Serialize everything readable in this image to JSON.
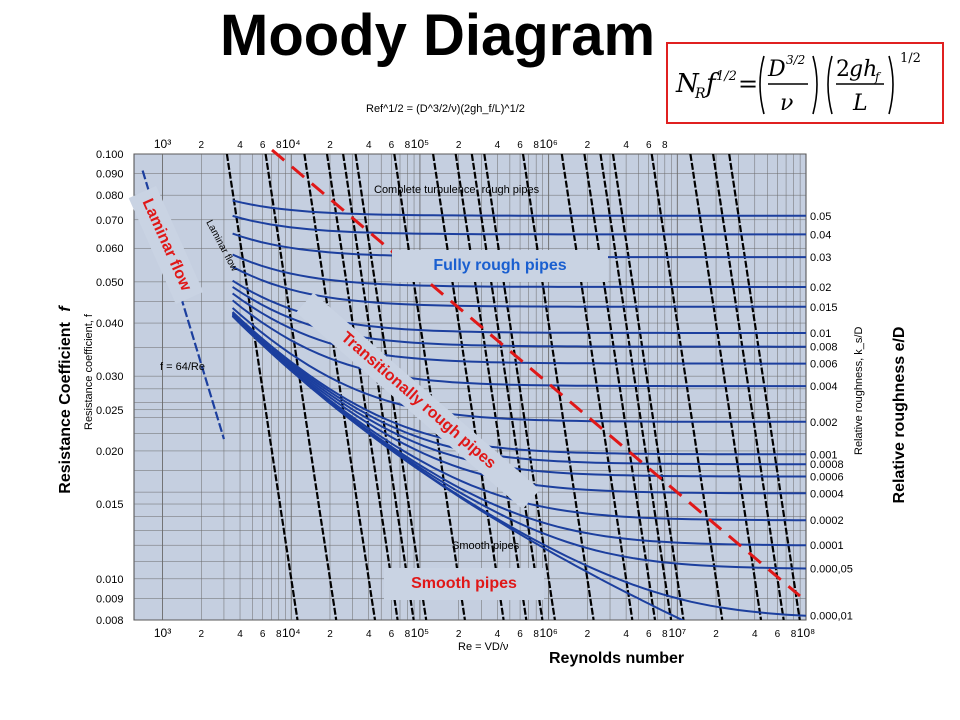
{
  "title": "Moody Diagram",
  "formula": {
    "display": "N_R f^1/2 = (D^3/2 / ν)(2gh_f / L)^1/2"
  },
  "colors": {
    "plot_bg": "#c5cfe0",
    "curve": "#1c3f9e",
    "reynolds_lines": "#000000",
    "boundary": "#e01818",
    "callout_bg": "#c9d3e3",
    "callout_blue_text": "#1a5fd0"
  },
  "labels": {
    "y_axis_main": "Resistance Coefficient",
    "y_axis_symbol": "f",
    "y_axis_printed": "Resistance coefficient, f",
    "y_axis_right": "Relative roughness e/D",
    "y_axis_right_printed": "Relative roughness, k_s/D",
    "x_axis_main": "Reynolds number",
    "x_axis_printed": "Re = VD/ν",
    "top_axis_printed": "Ref^1/2 = (D^3/2/ν)(2gh_f/L)^1/2",
    "complete_turbulence": "Complete turbulence, rough pipes",
    "smooth_pipes_printed": "Smooth pipes",
    "laminar_flow_printed": "Laminar flow",
    "laminar_equation_printed": "f = 64/Re"
  },
  "callouts": {
    "fully_rough": "Fully rough pipes",
    "smooth": "Smooth pipes",
    "laminar": "Laminar flow",
    "transitional": "Transitionally rough pipes"
  },
  "chart_data": {
    "type": "line",
    "title": "Moody Diagram",
    "xlabel": "Reynolds number",
    "ylabel": "Resistance Coefficient f",
    "xscale": "log",
    "yscale": "log",
    "xlim": [
      600,
      100000000
    ],
    "ylim": [
      0.008,
      0.1
    ],
    "grid": true,
    "x_ticks": [
      {
        "v": 1000,
        "label": "10³"
      },
      {
        "v": 2000,
        "label": "2"
      },
      {
        "v": 4000,
        "label": "4"
      },
      {
        "v": 6000,
        "label": "6"
      },
      {
        "v": 8000,
        "label": "8"
      },
      {
        "v": 10000,
        "label": "10⁴"
      },
      {
        "v": 20000,
        "label": "2"
      },
      {
        "v": 40000,
        "label": "4"
      },
      {
        "v": 60000,
        "label": "6"
      },
      {
        "v": 80000,
        "label": "8"
      },
      {
        "v": 100000,
        "label": "10⁵"
      },
      {
        "v": 200000,
        "label": "2"
      },
      {
        "v": 400000,
        "label": "4"
      },
      {
        "v": 600000,
        "label": "6"
      },
      {
        "v": 800000,
        "label": "8"
      },
      {
        "v": 1000000,
        "label": "10⁶"
      },
      {
        "v": 2000000,
        "label": "2"
      },
      {
        "v": 4000000,
        "label": "4"
      },
      {
        "v": 6000000,
        "label": "6"
      },
      {
        "v": 8000000,
        "label": "8"
      },
      {
        "v": 10000000,
        "label": "10⁷"
      },
      {
        "v": 20000000,
        "label": "2"
      },
      {
        "v": 40000000,
        "label": "4"
      },
      {
        "v": 60000000,
        "label": "6"
      },
      {
        "v": 80000000,
        "label": "8"
      },
      {
        "v": 100000000,
        "label": "10⁸"
      }
    ],
    "top_ticks": [
      {
        "v": 1000,
        "label": "10³"
      },
      {
        "v": 2000,
        "label": "2"
      },
      {
        "v": 4000,
        "label": "4"
      },
      {
        "v": 6000,
        "label": "6"
      },
      {
        "v": 8000,
        "label": "8"
      },
      {
        "v": 10000,
        "label": "10⁴"
      },
      {
        "v": 20000,
        "label": "2"
      },
      {
        "v": 40000,
        "label": "4"
      },
      {
        "v": 60000,
        "label": "6"
      },
      {
        "v": 80000,
        "label": "8"
      },
      {
        "v": 100000,
        "label": "10⁵"
      },
      {
        "v": 200000,
        "label": "2"
      },
      {
        "v": 400000,
        "label": "4"
      },
      {
        "v": 600000,
        "label": "6"
      },
      {
        "v": 800000,
        "label": "8"
      },
      {
        "v": 1000000,
        "label": "10⁶"
      },
      {
        "v": 2000000,
        "label": "2"
      },
      {
        "v": 4000000,
        "label": "4"
      },
      {
        "v": 6000000,
        "label": "6"
      },
      {
        "v": 8000000,
        "label": "8"
      }
    ],
    "y_ticks": [
      {
        "v": 0.1,
        "label": "0.100"
      },
      {
        "v": 0.09,
        "label": "0.090"
      },
      {
        "v": 0.08,
        "label": "0.080"
      },
      {
        "v": 0.07,
        "label": "0.070"
      },
      {
        "v": 0.06,
        "label": "0.060"
      },
      {
        "v": 0.05,
        "label": "0.050"
      },
      {
        "v": 0.04,
        "label": "0.040"
      },
      {
        "v": 0.03,
        "label": "0.030"
      },
      {
        "v": 0.025,
        "label": "0.025"
      },
      {
        "v": 0.02,
        "label": "0.020"
      },
      {
        "v": 0.015,
        "label": "0.015"
      },
      {
        "v": 0.01,
        "label": "0.010"
      },
      {
        "v": 0.009,
        "label": "0.009"
      },
      {
        "v": 0.008,
        "label": "0.008"
      }
    ],
    "relative_roughness": [
      {
        "e": 0.05,
        "label": "0.05"
      },
      {
        "e": 0.04,
        "label": "0.04"
      },
      {
        "e": 0.03,
        "label": "0.03"
      },
      {
        "e": 0.02,
        "label": "0.02"
      },
      {
        "e": 0.015,
        "label": "0.015"
      },
      {
        "e": 0.01,
        "label": "0.01"
      },
      {
        "e": 0.008,
        "label": "0.008"
      },
      {
        "e": 0.006,
        "label": "0.006"
      },
      {
        "e": 0.004,
        "label": "0.004"
      },
      {
        "e": 0.002,
        "label": "0.002"
      },
      {
        "e": 0.001,
        "label": "0.001"
      },
      {
        "e": 0.0008,
        "label": "0.0008"
      },
      {
        "e": 0.0006,
        "label": "0.0006"
      },
      {
        "e": 0.0004,
        "label": "0.0004"
      },
      {
        "e": 0.0002,
        "label": "0.0002"
      },
      {
        "e": 0.0001,
        "label": "0.0001"
      },
      {
        "e": 5e-05,
        "label": "0.000,05"
      },
      {
        "e": 1e-05,
        "label": "0.000,01"
      }
    ],
    "laminar": {
      "equation": "f = 64/Re",
      "re_range": [
        700,
        3000
      ]
    },
    "smooth_curve": true,
    "boundary_line": {
      "style": "dashed",
      "color": "#e01818"
    }
  }
}
